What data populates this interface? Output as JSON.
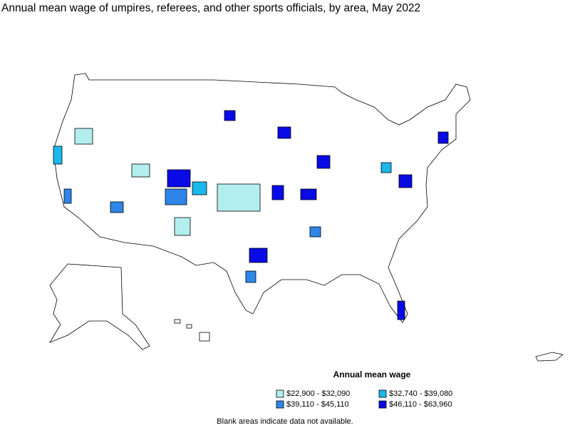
{
  "title": "Annual mean wage of umpires, referees, and other sports officials, by area, May 2022",
  "legend": {
    "title": "Annual mean wage",
    "items": [
      {
        "label": "$22,900 - $32,090",
        "color": "#b3eeee"
      },
      {
        "label": "$32,740 - $39,080",
        "color": "#1ab8ec"
      },
      {
        "label": "$39,110 - $45,110",
        "color": "#2e86e8"
      },
      {
        "label": "$46,110 - $63,960",
        "color": "#0a0ae6"
      }
    ]
  },
  "note": "Blank areas indicate data not available."
}
